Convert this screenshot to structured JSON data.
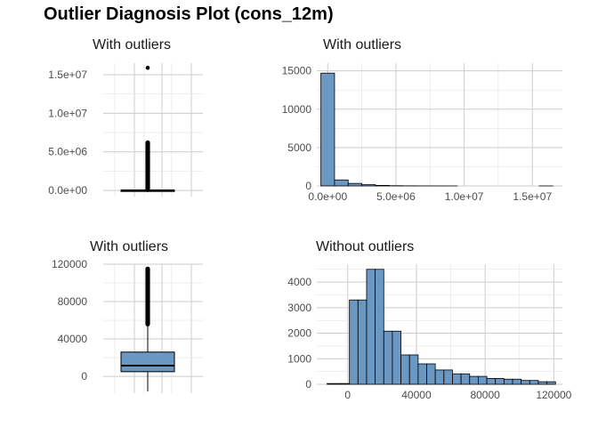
{
  "figure": {
    "title": "Outlier Diagnosis Plot (cons_12m)"
  },
  "colors": {
    "fill": "#6b97c3",
    "stroke": "#000000",
    "grid": "#cccccc",
    "text": "#4d4d4d"
  },
  "chart_data": [
    {
      "type": "boxplot",
      "title": "With outliers",
      "xlabel": "",
      "ylabel": "",
      "ylim": [
        -800000,
        16500000
      ],
      "yticks": [
        0,
        5000000,
        10000000,
        15000000
      ],
      "yticklabels": [
        "0.0e+00",
        "5.0e+06",
        "1.0e+07",
        "1.5e+07"
      ],
      "grid": true,
      "box": {
        "q1": 5700,
        "median": 14000,
        "q3": 41000
      },
      "outliers_range": [
        110000,
        6200000
      ],
      "outliers": [
        15900000
      ]
    },
    {
      "type": "bar",
      "title": "With outliers",
      "xlabel": "",
      "ylabel": "",
      "xlim": [
        -800000,
        17200000
      ],
      "ylim": [
        0,
        16000
      ],
      "xticks": [
        0,
        5000000,
        10000000,
        15000000
      ],
      "xticklabels": [
        "0.0e+00",
        "5.0e+06",
        "1.0e+07",
        "1.5e+07"
      ],
      "yticks": [
        0,
        5000,
        10000,
        15000
      ],
      "yticklabels": [
        "0",
        "5000",
        "10000",
        "15000"
      ],
      "grid": true,
      "bin_edges": [
        -500000,
        500000,
        1500000,
        2500000,
        3500000,
        4500000,
        5500000,
        6500000,
        7500000,
        8500000,
        9500000,
        10500000,
        11500000,
        12500000,
        13500000,
        14500000,
        15500000,
        16500000
      ],
      "counts": [
        14700,
        780,
        330,
        160,
        70,
        30,
        15,
        6,
        3,
        1,
        0,
        0,
        0,
        0,
        0,
        0,
        1
      ]
    },
    {
      "type": "boxplot",
      "title": "With outliers",
      "xlabel": "",
      "ylabel": "",
      "ylim": [
        -18000,
        120000
      ],
      "yticks": [
        0,
        40000,
        80000,
        120000
      ],
      "yticklabels": [
        "0",
        "40000",
        "80000",
        "120000"
      ],
      "grid": true,
      "box": {
        "whisker_low": -16000,
        "q1": 5000,
        "median": 11500,
        "q3": 26000
      },
      "outliers_range": [
        56000,
        115000
      ]
    },
    {
      "type": "bar",
      "title": "Without outliers",
      "xlabel": "",
      "ylabel": "",
      "xlim": [
        -18000,
        125000
      ],
      "ylim": [
        0,
        4700
      ],
      "xticks": [
        0,
        40000,
        80000,
        120000
      ],
      "xticklabels": [
        "0",
        "40000",
        "80000",
        "120000"
      ],
      "yticks": [
        0,
        1000,
        2000,
        3000,
        4000
      ],
      "yticklabels": [
        "0",
        "1000",
        "2000",
        "3000",
        "4000"
      ],
      "grid": true,
      "bin_edges": [
        -12000,
        -4000,
        1000,
        6000,
        11000,
        16000,
        21000,
        26000,
        31000,
        36000,
        41000,
        46000,
        51000,
        56000,
        61000,
        66000,
        71000,
        76000,
        81000,
        86000,
        91000,
        96000,
        101000,
        106000,
        111000,
        116000,
        121000
      ],
      "counts": [
        30,
        30,
        3300,
        3300,
        4500,
        4500,
        2080,
        2080,
        1150,
        1150,
        800,
        800,
        560,
        560,
        410,
        410,
        310,
        310,
        230,
        230,
        200,
        200,
        150,
        150,
        100,
        100
      ]
    }
  ]
}
